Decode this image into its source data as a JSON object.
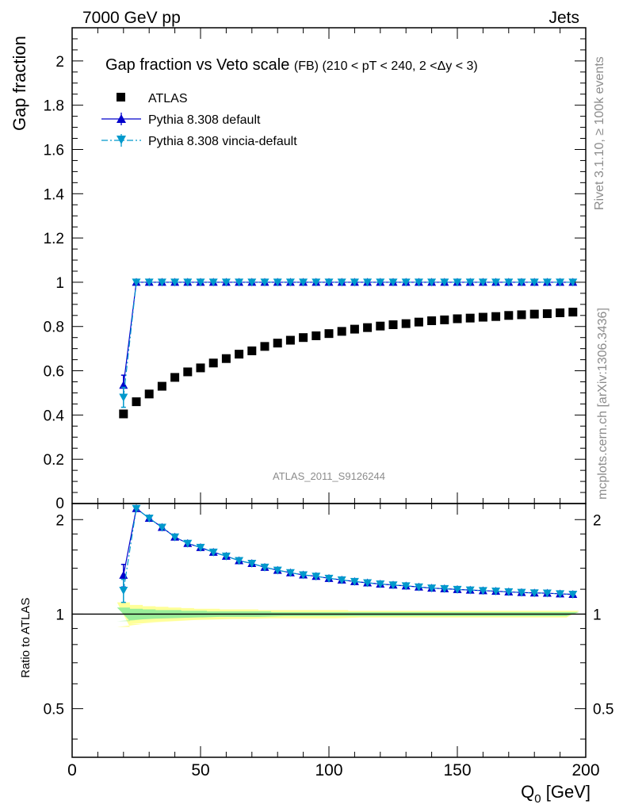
{
  "header": {
    "left": "7000 GeV pp",
    "right": "Jets"
  },
  "side_labels": {
    "rivet": "Rivet 3.1.10, ≥ 100k events",
    "mcplots": "mcplots.cern.ch [arXiv:1306.3436]"
  },
  "analysis_tag": "ATLAS_2011_S9126244",
  "colors": {
    "atlas": "#000000",
    "default": "#0000cc",
    "vincia": "#0099cc",
    "band_yellow": "#ffff99",
    "band_green": "#99ee99"
  },
  "chart_data": [
    {
      "type": "scatter",
      "title": "Gap fraction vs Veto scale",
      "subtitle": "(FB) (210 < pT < 240, 2 <Δy < 3)",
      "ylabel": "Gap fraction",
      "xlabel": "",
      "xlim": [
        0,
        200
      ],
      "ylim": [
        0,
        2.15
      ],
      "yticks": [
        0.2,
        0.4,
        0.6,
        0.8,
        1,
        1.2,
        1.4,
        1.6,
        1.8,
        2
      ],
      "ytick_labels": [
        "0.2",
        "0.4",
        "0.6",
        "0.8",
        "1",
        "1.2",
        "1.4",
        "1.6",
        "1.8",
        "2"
      ],
      "cut_label": "0",
      "x": [
        20,
        25,
        30,
        35,
        40,
        45,
        50,
        55,
        60,
        65,
        70,
        75,
        80,
        85,
        90,
        95,
        100,
        105,
        110,
        115,
        120,
        125,
        130,
        135,
        140,
        145,
        150,
        155,
        160,
        165,
        170,
        175,
        180,
        185,
        190,
        195
      ],
      "legend_position": "top-left",
      "series": [
        {
          "name": "ATLAS",
          "marker": "square",
          "values": [
            0.405,
            0.46,
            0.495,
            0.53,
            0.57,
            0.595,
            0.613,
            0.635,
            0.655,
            0.675,
            0.69,
            0.71,
            0.725,
            0.738,
            0.75,
            0.758,
            0.768,
            0.778,
            0.788,
            0.795,
            0.802,
            0.808,
            0.813,
            0.82,
            0.826,
            0.83,
            0.835,
            0.838,
            0.842,
            0.845,
            0.85,
            0.853,
            0.856,
            0.858,
            0.862,
            0.865
          ]
        },
        {
          "name": "Pythia 8.308 default",
          "marker": "triangle-up",
          "line": "solid",
          "values": [
            0.535,
            1,
            1,
            1,
            1,
            1,
            1,
            1,
            1,
            1,
            1,
            1,
            1,
            1,
            1,
            1,
            1,
            1,
            1,
            1,
            1,
            1,
            1,
            1,
            1,
            1,
            1,
            1,
            1,
            1,
            1,
            1,
            1,
            1,
            1,
            1
          ],
          "errors": [
            0.045,
            0,
            0,
            0,
            0,
            0,
            0,
            0,
            0,
            0,
            0,
            0,
            0,
            0,
            0,
            0,
            0,
            0,
            0,
            0,
            0,
            0,
            0,
            0,
            0,
            0,
            0,
            0,
            0,
            0,
            0,
            0,
            0,
            0,
            0,
            0
          ]
        },
        {
          "name": "Pythia 8.308 vincia-default",
          "marker": "triangle-down",
          "line": "dash-dot",
          "values": [
            0.48,
            1,
            1,
            1,
            1,
            1,
            1,
            1,
            1,
            1,
            1,
            1,
            1,
            1,
            1,
            1,
            1,
            1,
            1,
            1,
            1,
            1,
            1,
            1,
            1,
            1,
            1,
            1,
            1,
            1,
            1,
            1,
            1,
            1,
            1,
            1
          ],
          "errors": [
            0.045,
            0,
            0,
            0,
            0,
            0,
            0,
            0,
            0,
            0,
            0,
            0,
            0,
            0,
            0,
            0,
            0,
            0,
            0,
            0,
            0,
            0,
            0,
            0,
            0,
            0,
            0,
            0,
            0,
            0,
            0,
            0,
            0,
            0,
            0,
            0
          ]
        }
      ]
    },
    {
      "type": "scatter",
      "title": "",
      "ylabel": "Ratio to ATLAS",
      "xlabel": "Q₀ [GeV]",
      "xlabel_main": "Q",
      "xlabel_sub": "0",
      "xlabel_unit": " [GeV]",
      "xlim": [
        0,
        200
      ],
      "ylim": [
        0.35,
        2.25
      ],
      "log_y": true,
      "xticks": [
        0,
        50,
        100,
        150,
        200
      ],
      "xtick_labels": [
        "0",
        "50",
        "100",
        "150",
        "200"
      ],
      "yticks": [
        0.5,
        1,
        2
      ],
      "ytick_labels": [
        "0.5",
        "1",
        "2"
      ],
      "x": [
        20,
        25,
        30,
        35,
        40,
        45,
        50,
        55,
        60,
        65,
        70,
        75,
        80,
        85,
        90,
        95,
        100,
        105,
        110,
        115,
        120,
        125,
        130,
        135,
        140,
        145,
        150,
        155,
        160,
        165,
        170,
        175,
        180,
        185,
        190,
        195
      ],
      "reference_band": {
        "x_start": 17.5,
        "x_end": 197.5,
        "yellow_halfwidth": [
          0.09,
          0.07,
          0.06,
          0.055,
          0.05,
          0.045,
          0.04,
          0.04,
          0.035,
          0.035,
          0.035,
          0.03,
          0.03,
          0.03,
          0.03,
          0.03,
          0.03,
          0.03,
          0.025,
          0.025,
          0.025,
          0.025,
          0.025,
          0.025,
          0.025,
          0.025,
          0.025,
          0.025,
          0.025,
          0.025,
          0.025,
          0.025,
          0.025,
          0.025,
          0.025,
          0.025
        ],
        "green_halfwidth": [
          0.05,
          0.04,
          0.035,
          0.03,
          0.03,
          0.025,
          0.025,
          0.02,
          0.02,
          0.02,
          0.02,
          0.02,
          0.015,
          0.015,
          0.015,
          0.015,
          0.015,
          0.015,
          0.015,
          0.015,
          0.015,
          0.015,
          0.015,
          0.015,
          0.015,
          0.015,
          0.015,
          0.015,
          0.015,
          0.015,
          0.015,
          0.015,
          0.015,
          0.015,
          0.015,
          0.015
        ]
      },
      "series": [
        {
          "name": "Pythia 8.308 default",
          "values": [
            1.33,
            2.17,
            2.02,
            1.89,
            1.76,
            1.68,
            1.63,
            1.575,
            1.53,
            1.48,
            1.45,
            1.41,
            1.38,
            1.355,
            1.333,
            1.32,
            1.3,
            1.285,
            1.27,
            1.258,
            1.247,
            1.238,
            1.23,
            1.22,
            1.21,
            1.205,
            1.198,
            1.193,
            1.188,
            1.183,
            1.177,
            1.172,
            1.168,
            1.166,
            1.16,
            1.156
          ],
          "errors": [
            0.11,
            0,
            0,
            0,
            0,
            0,
            0,
            0,
            0,
            0,
            0,
            0,
            0,
            0,
            0,
            0,
            0,
            0,
            0,
            0,
            0,
            0,
            0,
            0,
            0,
            0,
            0,
            0,
            0,
            0,
            0,
            0,
            0,
            0,
            0,
            0
          ]
        },
        {
          "name": "Pythia 8.308 vincia-default",
          "values": [
            1.19,
            2.17,
            2.02,
            1.89,
            1.76,
            1.68,
            1.63,
            1.575,
            1.53,
            1.48,
            1.45,
            1.41,
            1.38,
            1.355,
            1.333,
            1.32,
            1.3,
            1.285,
            1.27,
            1.258,
            1.247,
            1.238,
            1.23,
            1.22,
            1.21,
            1.205,
            1.198,
            1.193,
            1.188,
            1.183,
            1.177,
            1.172,
            1.168,
            1.166,
            1.16,
            1.156
          ],
          "errors": [
            0.1,
            0,
            0,
            0,
            0,
            0,
            0,
            0,
            0,
            0,
            0,
            0,
            0,
            0,
            0,
            0,
            0,
            0,
            0,
            0,
            0,
            0,
            0,
            0,
            0,
            0,
            0,
            0,
            0,
            0,
            0,
            0,
            0,
            0,
            0,
            0
          ]
        }
      ]
    }
  ]
}
